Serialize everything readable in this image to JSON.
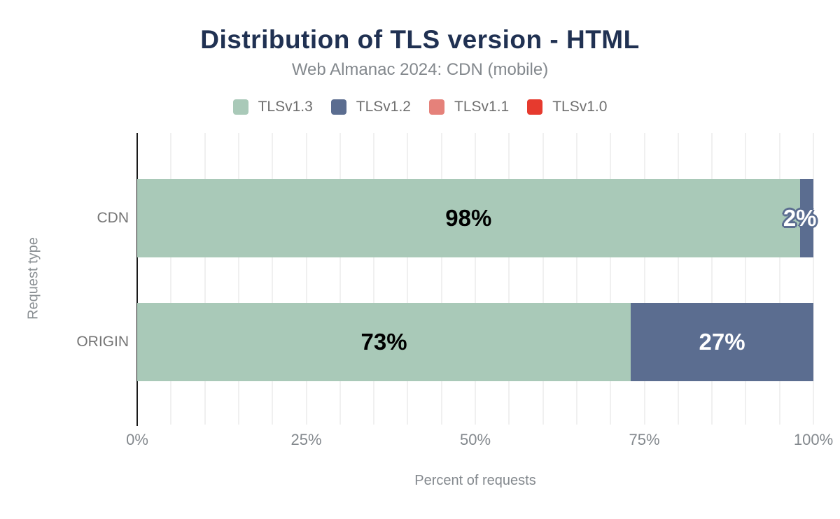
{
  "chart_data": {
    "type": "bar",
    "orientation": "horizontal-stacked",
    "title": "Distribution of TLS version - HTML",
    "subtitle": "Web Almanac 2024: CDN (mobile)",
    "xlabel": "Percent of requests",
    "ylabel": "Request type",
    "xlim": [
      0,
      100
    ],
    "grid_interval_pct": 5,
    "x_ticks": [
      {
        "value": 0,
        "label": "0%"
      },
      {
        "value": 25,
        "label": "25%"
      },
      {
        "value": 50,
        "label": "50%"
      },
      {
        "value": 75,
        "label": "75%"
      },
      {
        "value": 100,
        "label": "100%"
      }
    ],
    "categories": [
      "CDN",
      "ORIGIN"
    ],
    "series": [
      {
        "name": "TLSv1.3",
        "color": "#a9c9b8",
        "label_color": "#000000",
        "values": [
          98,
          73
        ]
      },
      {
        "name": "TLSv1.2",
        "color": "#5b6d90",
        "label_color": "#ffffff",
        "values": [
          2,
          27
        ]
      },
      {
        "name": "TLSv1.1",
        "color": "#e5817a",
        "label_color": "#ffffff",
        "values": [
          0,
          0
        ]
      },
      {
        "name": "TLSv1.0",
        "color": "#e63a2e",
        "label_color": "#ffffff",
        "values": [
          0,
          0
        ]
      }
    ],
    "bar_labels": [
      [
        "98%",
        "2%",
        "",
        ""
      ],
      [
        "73%",
        "27%",
        "",
        ""
      ]
    ],
    "legend_position": "top",
    "grid": "vertical-on",
    "colors": {
      "title": "#203152",
      "subtitle": "#83888d",
      "axis_text": "#83888d",
      "category_text": "#757575",
      "gridline": "#f0f0f0",
      "axis_line": "#1a1a1a"
    }
  }
}
